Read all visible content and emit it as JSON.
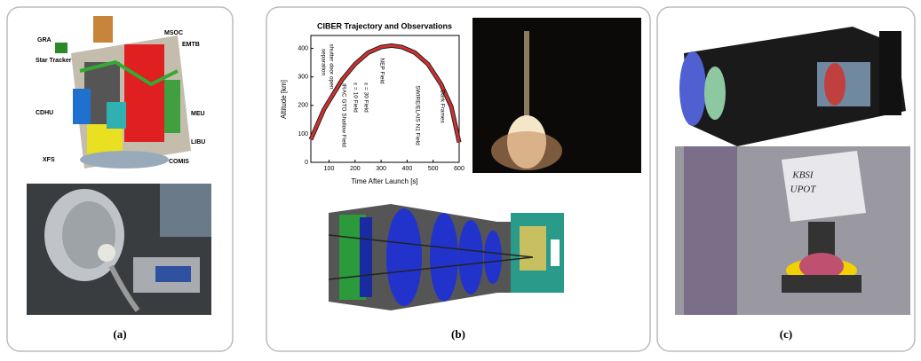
{
  "panels": [
    {
      "caption": "(a)",
      "labels": [
        "GRA",
        "MSOC",
        "EMTB",
        "Star Tracker",
        "CDHU",
        "MEU",
        "LIBU",
        "XFS",
        "COMIS"
      ]
    },
    {
      "caption": "(b)",
      "plot": {
        "title": "CIBER Trajectory and Observations",
        "xlabel": "Time After Launch [s]",
        "ylabel": "Altitude [km]",
        "xlim": [
          30,
          600
        ],
        "ylim": [
          0,
          430
        ],
        "xticks": [
          100,
          200,
          300,
          400,
          500,
          600
        ],
        "yticks": [
          0,
          100,
          200,
          300,
          400
        ],
        "x": [
          30,
          80,
          150,
          200,
          250,
          300,
          340,
          380,
          430,
          480,
          530,
          570,
          600
        ],
        "y": [
          80,
          185,
          290,
          345,
          385,
          405,
          410,
          405,
          385,
          345,
          275,
          195,
          70
        ],
        "annotations": [
          "separation",
          "shutter door open",
          "IRAC GTO Shallow Field",
          "ε = 10 Field",
          "ε = 30 Field",
          "NEP Field",
          "SWIRE/ELAIS N1 Field",
          "Dark Frames"
        ]
      }
    },
    {
      "caption": "(c)",
      "labels": [
        "KBSI",
        "UPOT"
      ]
    }
  ]
}
